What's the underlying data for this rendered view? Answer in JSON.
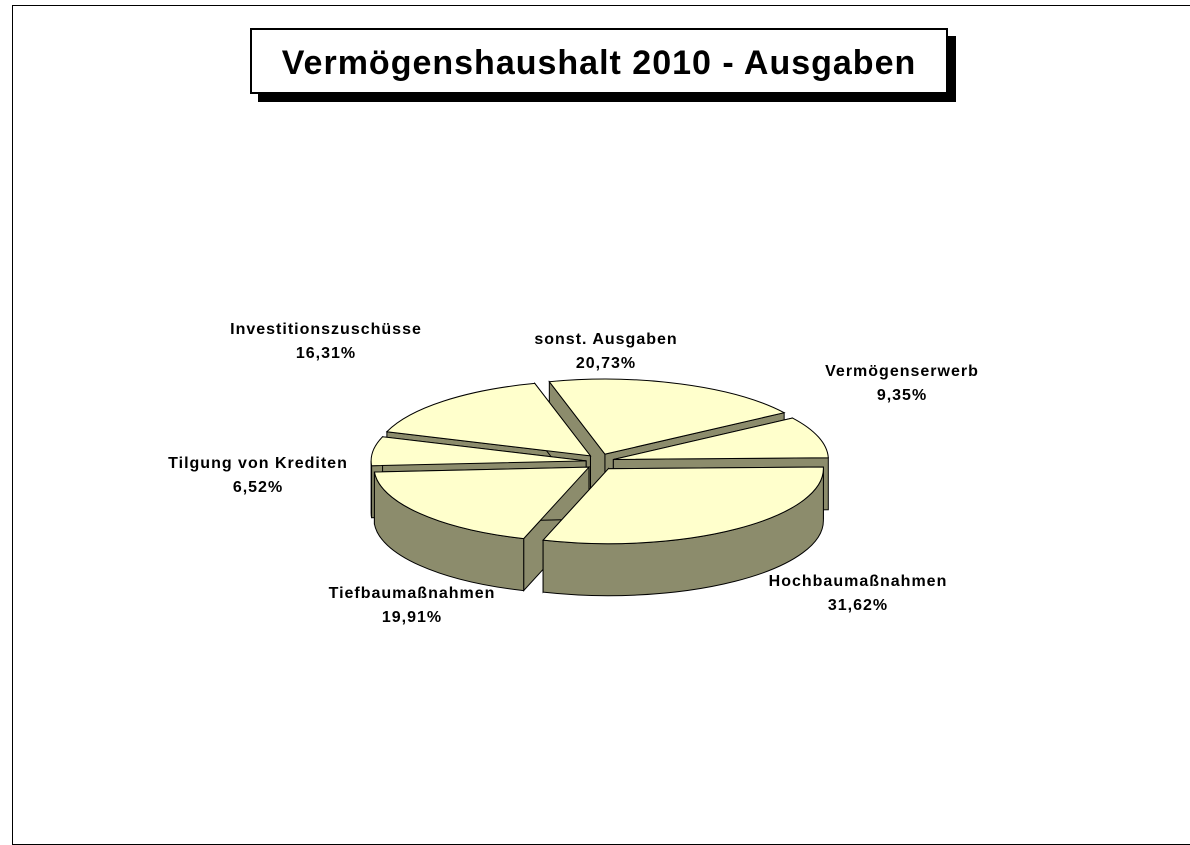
{
  "chart_data": {
    "type": "pie3d",
    "title": "Vermögenshaushalt 2010 - Ausgaben",
    "categories": [
      "sonst. Ausgaben",
      "Vermögenserwerb",
      "Hochbaumaßnahmen",
      "Tiefbaumaßnahmen",
      "Tilgung von Krediten",
      "Investitionszuschüsse"
    ],
    "values": [
      20.73,
      9.35,
      31.62,
      19.91,
      6.52,
      16.31
    ],
    "value_labels": [
      "20,73%",
      "9,35%",
      "31,62%",
      "19,91%",
      "6,52%",
      "16,31%"
    ],
    "color": "#ffffcc",
    "side_color": "#8c8c6c"
  }
}
